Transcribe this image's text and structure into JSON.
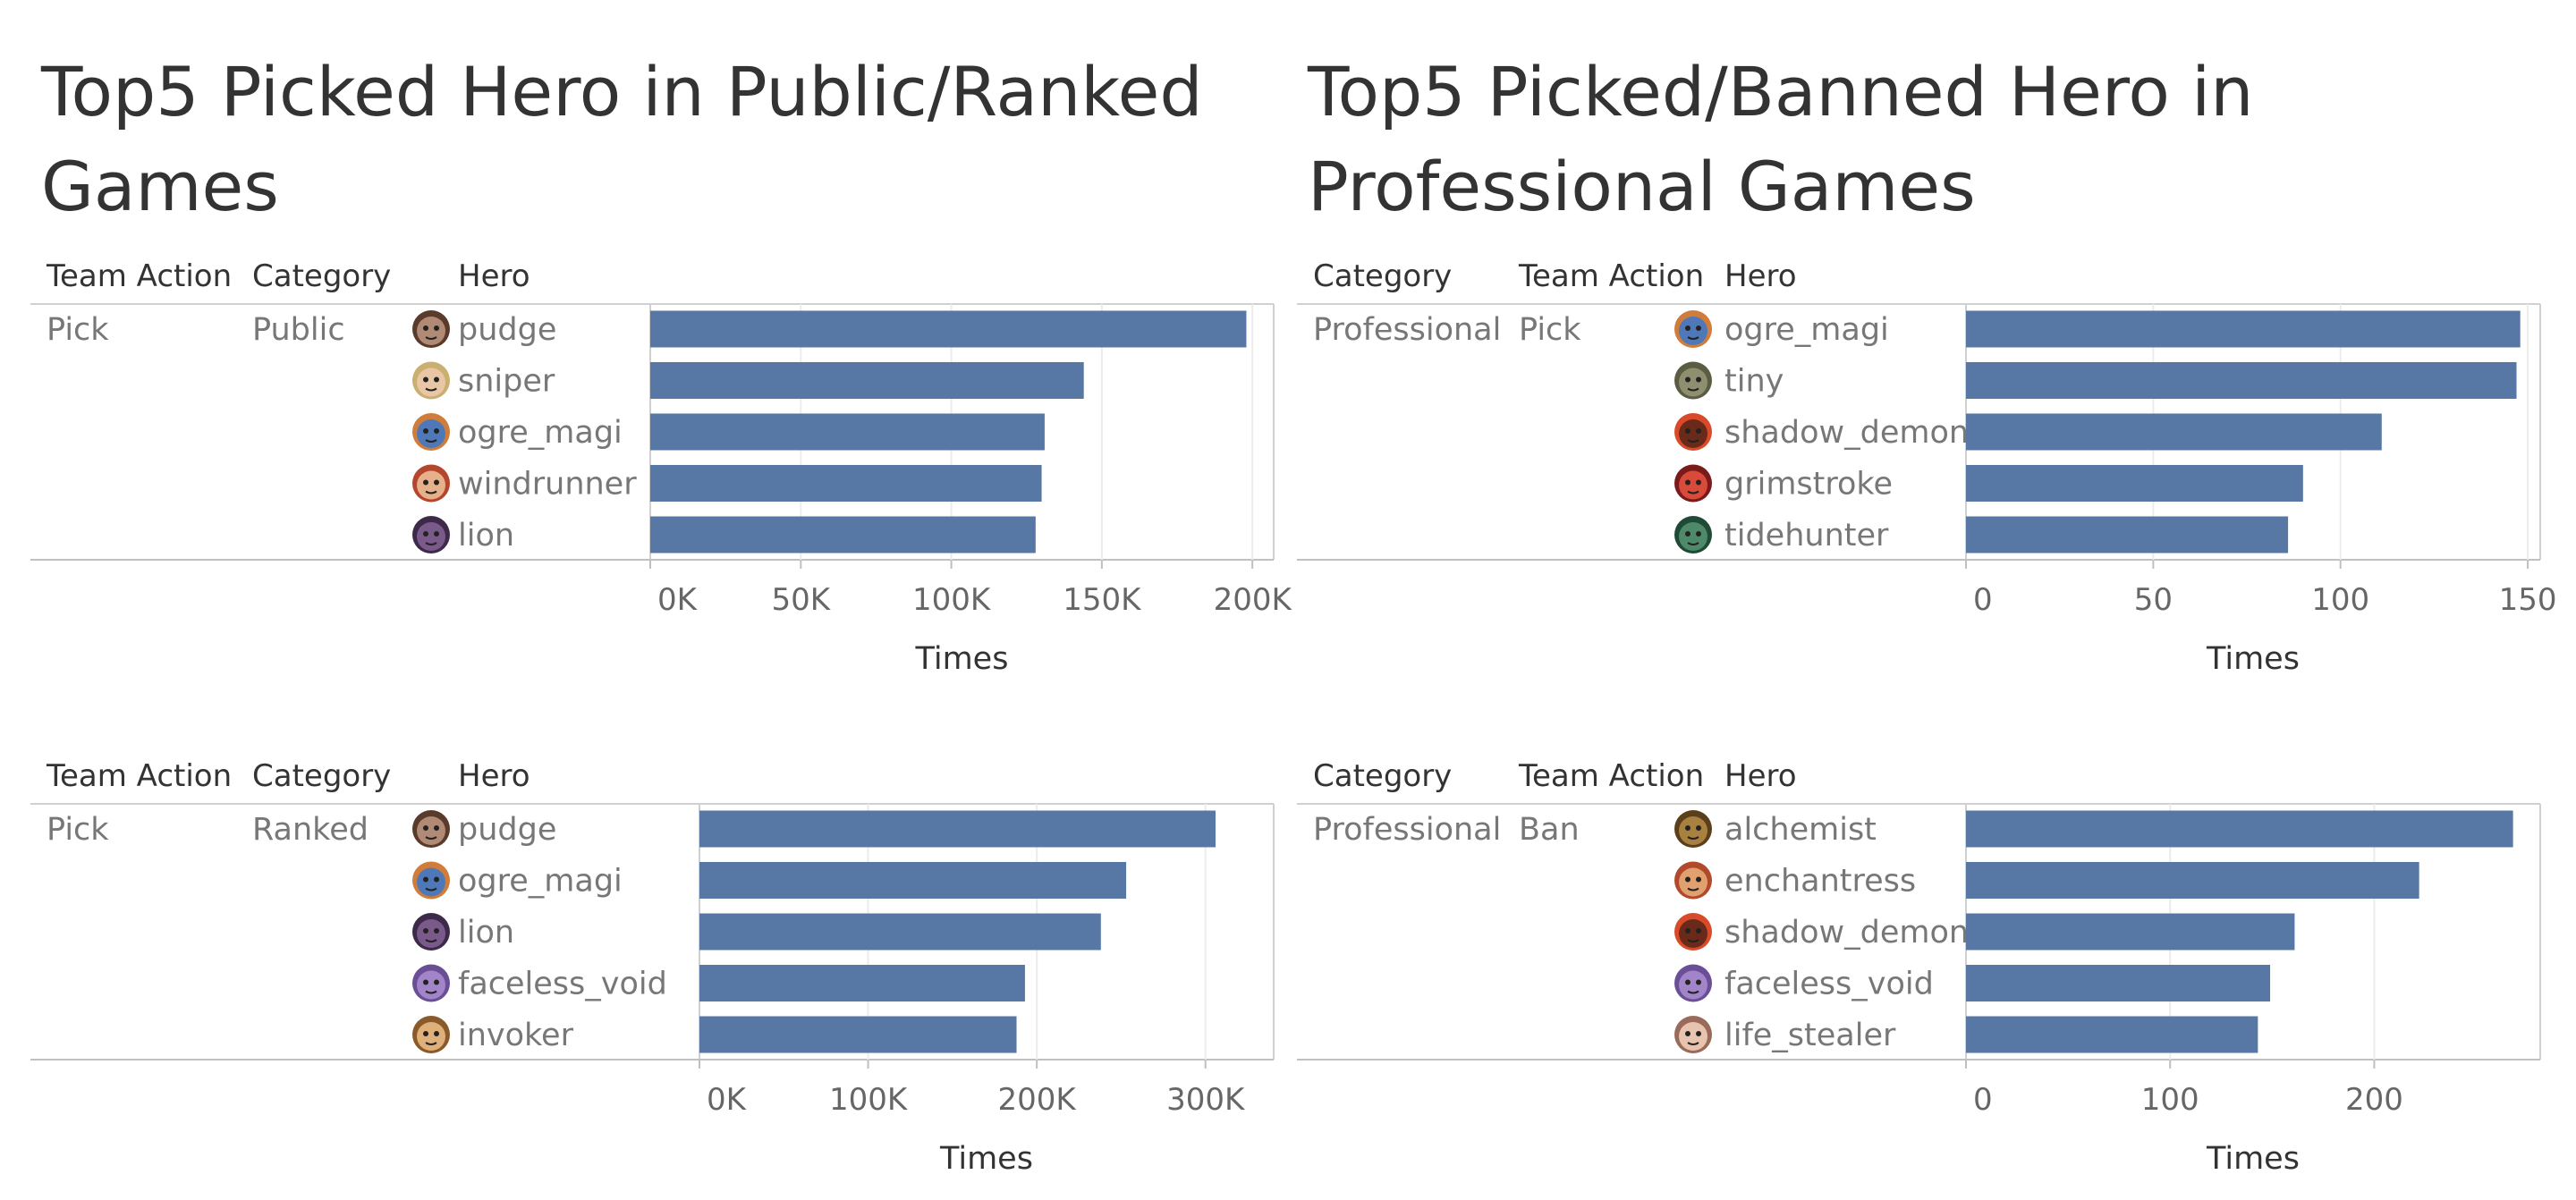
{
  "titles": {
    "left": "Top5 Picked Hero in Public/Ranked Games",
    "right": "Top5 Picked/Banned Hero in Professional Games"
  },
  "chart_data": [
    {
      "type": "bar",
      "orientation": "horizontal",
      "title": "Top5 Picked Hero in Public/Ranked Games",
      "columns": [
        "Team Action",
        "Category",
        "Hero"
      ],
      "row_labels": [
        "Pick",
        "Public"
      ],
      "categories": [
        "pudge",
        "sniper",
        "ogre_magi",
        "windrunner",
        "lion"
      ],
      "icons": [
        "pudge-icon",
        "sniper-icon",
        "ogre-magi-icon",
        "windrunner-icon",
        "lion-icon"
      ],
      "values": [
        198000,
        144000,
        131000,
        130000,
        128000
      ],
      "xlim": [
        0,
        205000
      ],
      "ticks": [
        0,
        50000,
        100000,
        150000,
        200000
      ],
      "tick_labels": [
        "0K",
        "50K",
        "100K",
        "150K",
        "200K"
      ],
      "xlabel": "Times",
      "color": "#5778a4"
    },
    {
      "type": "bar",
      "orientation": "horizontal",
      "title": "Top5 Picked/Banned Hero in Professional Games",
      "columns": [
        "Category",
        "Team Action",
        "Hero"
      ],
      "row_labels": [
        "Professional",
        "Pick"
      ],
      "categories": [
        "ogre_magi",
        "tiny",
        "shadow_demon",
        "grimstroke",
        "tidehunter"
      ],
      "icons": [
        "ogre-magi-icon",
        "tiny-icon",
        "shadow-demon-icon",
        "grimstroke-icon",
        "tidehunter-icon"
      ],
      "values": [
        148,
        147,
        111,
        90,
        86
      ],
      "xlim": [
        0,
        155
      ],
      "ticks": [
        0,
        50,
        100,
        150
      ],
      "tick_labels": [
        "0",
        "50",
        "100",
        "150"
      ],
      "xlabel": "Times",
      "color": "#5778a4"
    },
    {
      "type": "bar",
      "orientation": "horizontal",
      "title": "Top5 Picked Hero in Public/Ranked Games",
      "columns": [
        "Team Action",
        "Category",
        "Hero"
      ],
      "row_labels": [
        "Pick",
        "Ranked"
      ],
      "categories": [
        "pudge",
        "ogre_magi",
        "lion",
        "faceless_void",
        "invoker"
      ],
      "icons": [
        "pudge-icon",
        "ogre-magi-icon",
        "lion-icon",
        "faceless-void-icon",
        "invoker-icon"
      ],
      "values": [
        306000,
        253000,
        238000,
        193000,
        188000
      ],
      "xlim": [
        0,
        315000
      ],
      "ticks": [
        0,
        100000,
        200000,
        300000
      ],
      "tick_labels": [
        "0K",
        "100K",
        "200K",
        "300K"
      ],
      "xlabel": "Times",
      "color": "#5778a4"
    },
    {
      "type": "bar",
      "orientation": "horizontal",
      "title": "Top5 Picked/Banned Hero in Professional Games",
      "columns": [
        "Category",
        "Team Action",
        "Hero"
      ],
      "row_labels": [
        "Professional",
        "Ban"
      ],
      "categories": [
        "alchemist",
        "enchantress",
        "shadow_demon",
        "faceless_void",
        "life_stealer"
      ],
      "icons": [
        "alchemist-icon",
        "enchantress-icon",
        "shadow-demon-icon",
        "faceless-void-icon",
        "life-stealer-icon"
      ],
      "values": [
        268,
        222,
        161,
        149,
        143
      ],
      "xlim": [
        0,
        280
      ],
      "ticks": [
        0,
        100,
        200
      ],
      "tick_labels": [
        "0",
        "100",
        "200"
      ],
      "xlabel": "Times",
      "color": "#5778a4"
    }
  ]
}
